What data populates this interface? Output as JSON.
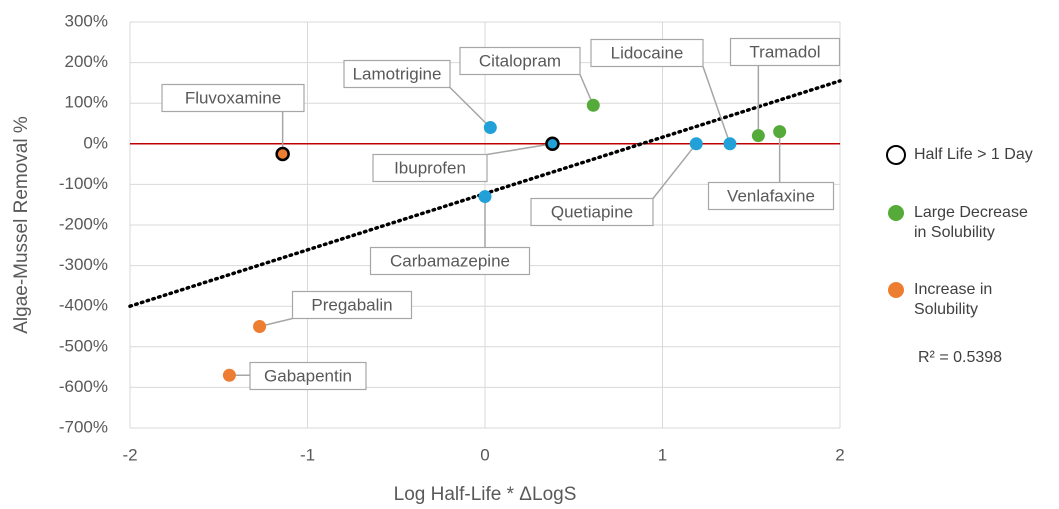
{
  "chart_data": {
    "type": "scatter",
    "x_label": "Log Half-Life * ΔLogS",
    "y_label": "Algae-Mussel Removal %",
    "xlim": [
      -2,
      2
    ],
    "xticks": [
      -2,
      -1,
      0,
      1,
      2
    ],
    "ylim": [
      -700,
      300
    ],
    "yticks": [
      {
        "value": -700,
        "label": "-700%"
      },
      {
        "value": -600,
        "label": "-600%"
      },
      {
        "value": -500,
        "label": "-500%"
      },
      {
        "value": -400,
        "label": "-400%"
      },
      {
        "value": -300,
        "label": "-300%"
      },
      {
        "value": -200,
        "label": "-200%"
      },
      {
        "value": -100,
        "label": "-100%"
      },
      {
        "value": 0,
        "label": "0%"
      },
      {
        "value": 100,
        "label": "100%"
      },
      {
        "value": 200,
        "label": "200%"
      },
      {
        "value": 300,
        "label": "300%"
      }
    ],
    "grid": true,
    "reference_line": {
      "y": 0,
      "color": "#c00000"
    },
    "points": [
      {
        "label": "Fluvoxamine",
        "x": -1.14,
        "y": -25,
        "color": "#ed7d31",
        "ring": true
      },
      {
        "label": "Lamotrigine",
        "x": 0.03,
        "y": 40,
        "color": "#22a0d8",
        "ring": false
      },
      {
        "label": "Citalopram",
        "x": 0.61,
        "y": 95,
        "color": "#55ab3a",
        "ring": false
      },
      {
        "label": "Ibuprofen",
        "x": 0.38,
        "y": 0,
        "color": "#22a0d8",
        "ring": true
      },
      {
        "label": "Carbamazepine",
        "x": 0.0,
        "y": -130,
        "color": "#22a0d8",
        "ring": false
      },
      {
        "label": "Lidocaine",
        "x": 1.38,
        "y": 0,
        "color": "#22a0d8",
        "ring": false
      },
      {
        "label": "Quetiapine",
        "x": 1.19,
        "y": 0,
        "color": "#22a0d8",
        "ring": false
      },
      {
        "label": "Tramadol",
        "x": 1.54,
        "y": 20,
        "color": "#55ab3a",
        "ring": false
      },
      {
        "label": "Venlafaxine",
        "x": 1.66,
        "y": 30,
        "color": "#55ab3a",
        "ring": false
      },
      {
        "label": "Pregabalin",
        "x": -1.27,
        "y": -450,
        "color": "#ed7d31",
        "ring": false
      },
      {
        "label": "Gabapentin",
        "x": -1.44,
        "y": -570,
        "color": "#ed7d31",
        "ring": false
      }
    ],
    "trendline": {
      "x": [
        -2,
        2
      ],
      "y": [
        -400,
        155
      ],
      "color": "#000000"
    },
    "legend": [
      {
        "name": "Half Life > 1 Day",
        "marker": "ring",
        "color": "#000000"
      },
      {
        "name": "Large Decrease in Solubility",
        "marker": "dot",
        "color": "#55ab3a"
      },
      {
        "name": "Increase in Solubility",
        "marker": "dot",
        "color": "#ed7d31"
      }
    ],
    "annotation": "R² = 0.5398"
  }
}
